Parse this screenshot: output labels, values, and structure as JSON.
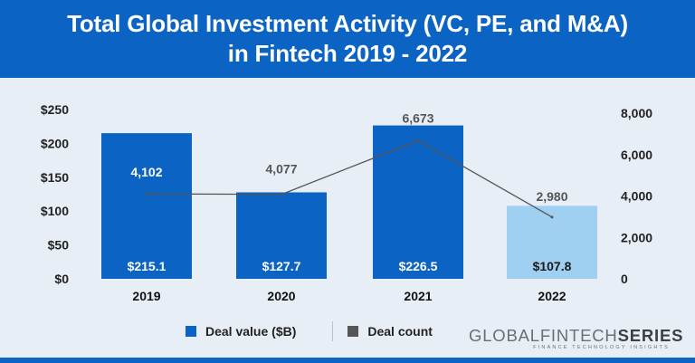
{
  "header": {
    "title_line1": "Total Global Investment Activity (VC, PE, and M&A)",
    "title_line2": "in Fintech 2019 - 2022"
  },
  "colors": {
    "header_bg": "#0b63c4",
    "bar": "#0b63c4",
    "bar_highlight": "#9fd0f2",
    "line": "#555555",
    "background": "#e8eef6"
  },
  "chart_data": {
    "type": "bar",
    "categories": [
      "2019",
      "2020",
      "2021",
      "2022"
    ],
    "series": [
      {
        "name": "Deal value ($B)",
        "type": "bar",
        "axis": "left",
        "values": [
          215.1,
          127.7,
          226.5,
          107.8
        ],
        "labels": [
          "$215.1",
          "$127.7",
          "$226.5",
          "$107.8"
        ]
      },
      {
        "name": "Deal count",
        "type": "line",
        "axis": "right",
        "values": [
          4102,
          4077,
          6673,
          2980
        ],
        "labels": [
          "4,102",
          "4,077",
          "6,673",
          "2,980"
        ]
      }
    ],
    "y_left": {
      "ylim": [
        0,
        250
      ],
      "ticks": [
        "$0",
        "$50",
        "$100",
        "$150",
        "$200",
        "$250"
      ]
    },
    "y_right": {
      "ylim": [
        0,
        8000
      ],
      "ticks": [
        "0",
        "2,000",
        "4,000",
        "6,000",
        "8,000"
      ]
    },
    "highlight_category": "2022",
    "grid": false,
    "legend_position": "bottom-center"
  },
  "legend": {
    "value_label": "Deal value ($B)",
    "count_label": "Deal count"
  },
  "brand": {
    "logo_part1": "GLOBALFINTECH",
    "logo_part2": "SERIES",
    "tagline": "FINANCE TECHNOLOGY INSIGHTS"
  }
}
